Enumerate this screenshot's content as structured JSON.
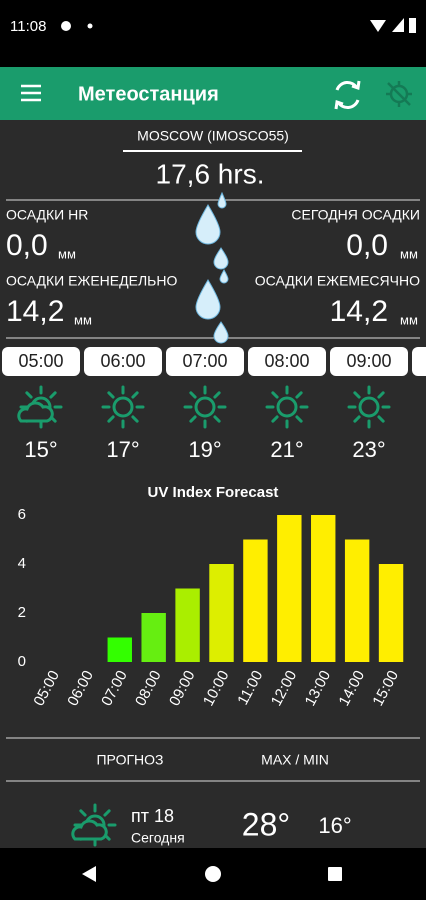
{
  "status_bar": {
    "time": "11:08"
  },
  "app_bar": {
    "title": "Метеостанция"
  },
  "station": {
    "name": "MOSCOW (IMOSCO55)",
    "hours": "17,6 hrs."
  },
  "rain": [
    {
      "label": "ОСАДКИ HR",
      "value": "0,0",
      "unit": "мм"
    },
    {
      "label": "СЕГОДНЯ ОСАДКИ",
      "value": "0,0",
      "unit": "мм"
    },
    {
      "label": "ОСАДКИ ЕЖЕНЕДЕЛЬНО",
      "value": "14,2",
      "unit": "мм"
    },
    {
      "label": "ОСАДКИ ЕЖЕМЕСЯЧНО",
      "value": "14,2",
      "unit": "мм"
    }
  ],
  "hourly": [
    {
      "time": "05:00",
      "temp": "15°"
    },
    {
      "time": "06:00",
      "temp": "17°"
    },
    {
      "time": "07:00",
      "temp": "19°"
    },
    {
      "time": "08:00",
      "temp": "21°"
    },
    {
      "time": "09:00",
      "temp": "23°"
    }
  ],
  "chart_data": {
    "type": "bar",
    "title": "UV Index Forecast",
    "categories": [
      "05:00",
      "06:00",
      "07:00",
      "08:00",
      "09:00",
      "10:00",
      "11:00",
      "12:00",
      "13:00",
      "14:00",
      "15:00"
    ],
    "values": [
      0,
      0,
      1,
      2,
      3,
      4,
      5,
      6,
      6,
      5,
      4
    ],
    "colors": [
      "#33ff00",
      "#33ff00",
      "#33ff00",
      "#66ee11",
      "#aaee00",
      "#ddee00",
      "#ffee00",
      "#ffee00",
      "#ffee00",
      "#ffee00",
      "#ffee00"
    ],
    "ylim": [
      0,
      6
    ],
    "yticks": [
      0,
      2,
      4,
      6
    ]
  },
  "forecast": {
    "headers": [
      "ПРОГНОЗ",
      "MAX / MIN"
    ],
    "days": [
      {
        "day": "пт 18",
        "label": "Сегодня",
        "max": "28°",
        "min": "16°"
      }
    ]
  }
}
